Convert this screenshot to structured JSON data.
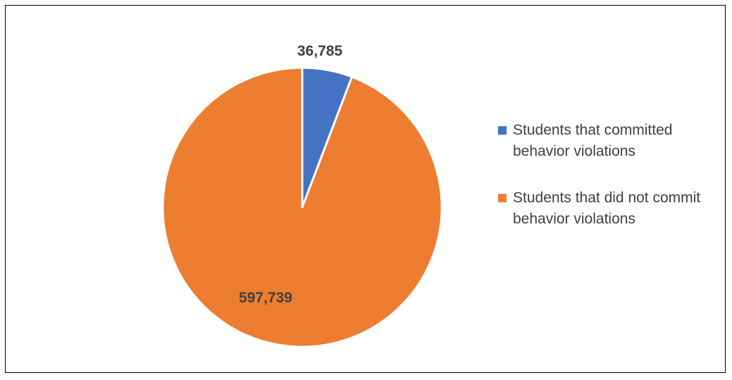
{
  "chart_data": {
    "type": "pie",
    "title": "",
    "slices": [
      {
        "label": "Students that committed behavior violations",
        "value": 36785,
        "value_label": "36,785",
        "color": "#4472C4"
      },
      {
        "label": "Students that did not commit behavior violations",
        "value": 597739,
        "value_label": "597,739",
        "color": "#ED7D31"
      }
    ],
    "legend": {
      "position": "right",
      "items": [
        "Students that committed behavior violations",
        "Students that did not commit behavior violations"
      ]
    }
  }
}
